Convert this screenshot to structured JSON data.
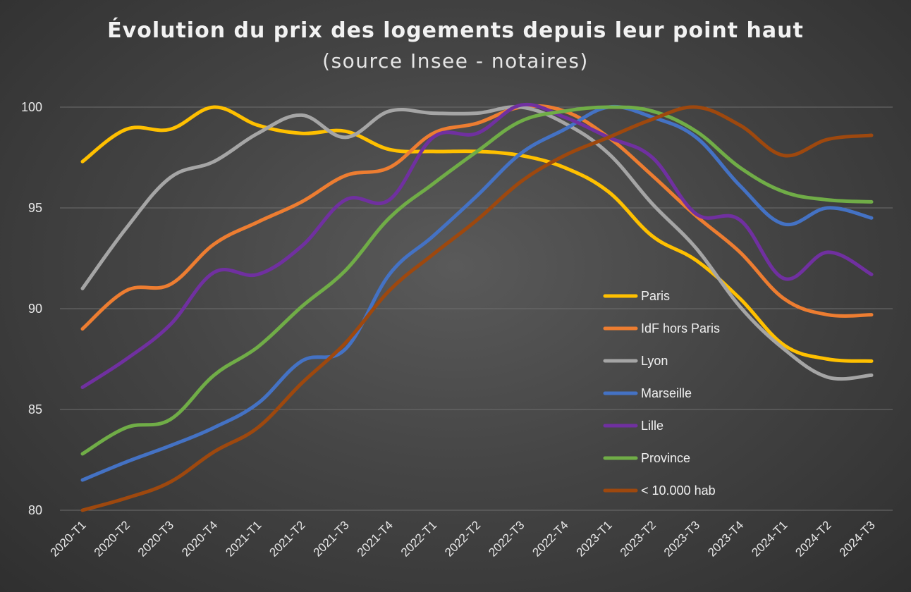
{
  "chart_data": {
    "type": "line",
    "title": "Évolution du prix des logements depuis leur point haut",
    "subtitle": "(source Insee - notaires)",
    "xlabel": "",
    "ylabel": "",
    "ylim": [
      80,
      100
    ],
    "yticks": [
      80,
      85,
      90,
      95,
      100
    ],
    "ytick_labels": [
      "80",
      "85",
      "90",
      "95",
      "100"
    ],
    "grid": true,
    "legend_position": "right",
    "categories": [
      "2020-T1",
      "2020-T2",
      "2020-T3",
      "2020-T4",
      "2021-T1",
      "2021-T2",
      "2021-T3",
      "2021-T4",
      "2022-T1",
      "2022-T2",
      "2022-T3",
      "2022-T4",
      "2023-T1",
      "2023-T2",
      "2023-T3",
      "2023-T4",
      "2024-T1",
      "2024-T2",
      "2024-T3"
    ],
    "series": [
      {
        "name": "Paris",
        "color": "#ffc000",
        "values": [
          97.3,
          98.9,
          98.9,
          100.0,
          99.1,
          98.7,
          98.8,
          97.9,
          97.8,
          97.8,
          97.6,
          97.0,
          95.8,
          93.6,
          92.4,
          90.5,
          88.2,
          87.5,
          87.4
        ]
      },
      {
        "name": "IdF hors Paris",
        "color": "#ed7d31",
        "values": [
          89.0,
          90.9,
          91.2,
          93.2,
          94.3,
          95.3,
          96.6,
          97.0,
          98.7,
          99.2,
          100.0,
          99.8,
          98.5,
          96.6,
          94.6,
          92.8,
          90.5,
          89.7,
          89.7
        ]
      },
      {
        "name": "Lyon",
        "color": "#a5a5a5",
        "values": [
          91.0,
          94.0,
          96.5,
          97.3,
          98.7,
          99.6,
          98.5,
          99.8,
          99.7,
          99.7,
          100.0,
          99.2,
          97.7,
          95.2,
          93.0,
          90.1,
          88.0,
          86.6,
          86.7
        ]
      },
      {
        "name": "Marseille",
        "color": "#4472c4",
        "values": [
          81.5,
          82.4,
          83.2,
          84.1,
          85.3,
          87.4,
          88.0,
          91.7,
          93.6,
          95.6,
          97.7,
          98.9,
          100.0,
          99.5,
          98.5,
          96.1,
          94.2,
          95.0,
          94.5
        ]
      },
      {
        "name": "Lille",
        "color": "#7030a0",
        "values": [
          86.1,
          87.5,
          89.2,
          91.8,
          91.7,
          93.1,
          95.4,
          95.4,
          98.5,
          98.7,
          100.1,
          99.5,
          98.5,
          97.5,
          94.7,
          94.4,
          91.5,
          92.8,
          91.7
        ]
      },
      {
        "name": "Province",
        "color": "#70ad47",
        "values": [
          82.8,
          84.1,
          84.5,
          86.7,
          88.1,
          90.1,
          91.9,
          94.5,
          96.2,
          97.8,
          99.3,
          99.8,
          100.0,
          99.8,
          98.8,
          97.0,
          95.8,
          95.4,
          95.3
        ]
      },
      {
        "name": "< 10.000 hab",
        "color": "#9e480e",
        "values": [
          80.0,
          80.6,
          81.4,
          82.9,
          84.1,
          86.3,
          88.3,
          90.9,
          92.7,
          94.4,
          96.3,
          97.6,
          98.5,
          99.4,
          100.0,
          99.1,
          97.6,
          98.4,
          98.6
        ]
      }
    ]
  }
}
